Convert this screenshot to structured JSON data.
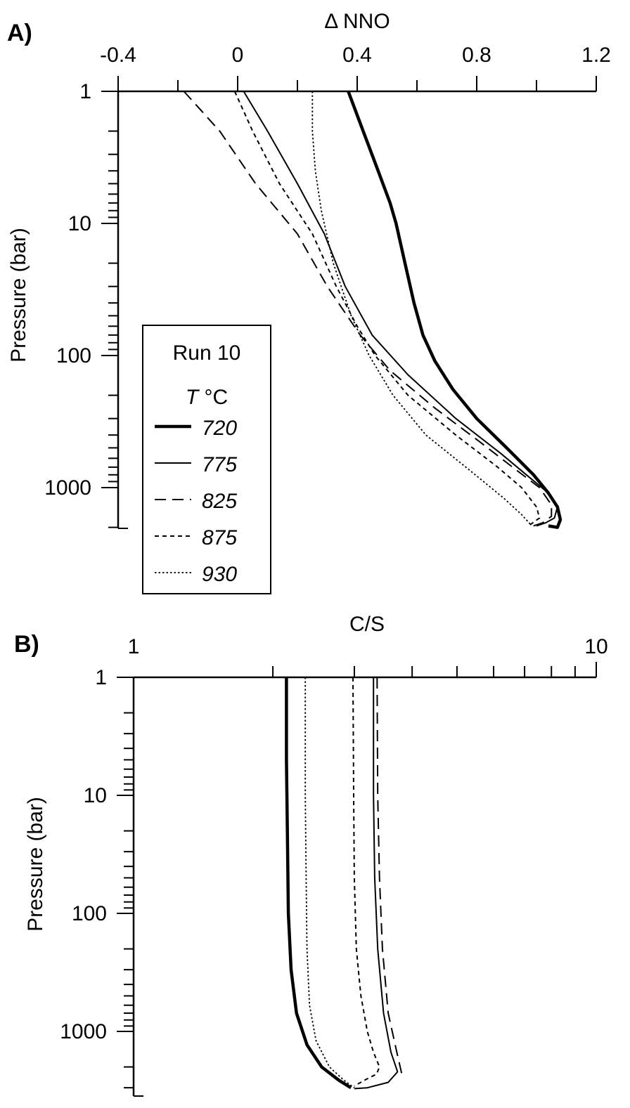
{
  "chart_data": [
    {
      "panel_label": "A)",
      "type": "line",
      "xlabel": "Δ NNO",
      "ylabel": "Pressure (bar)",
      "xlim": [
        -0.4,
        1.2
      ],
      "ylim": [
        1,
        3500
      ],
      "y_scale": "log",
      "y_inverted": true,
      "x_axis_position": "top",
      "x_tick_labels": [
        "-0.4",
        "0",
        "0.4",
        "0.8",
        "1.2"
      ],
      "y_tick_labels": [
        "1",
        "10",
        "100",
        "1000"
      ],
      "legend": {
        "title": "Run 10",
        "subtitle_italic": "T",
        "subtitle_unit": " °C",
        "entries": [
          "720",
          "775",
          "825",
          "875",
          "930"
        ],
        "position": "lower-left"
      },
      "series": [
        {
          "name": "720",
          "style": "thick-solid",
          "points": [
            [
              0.37,
              1
            ],
            [
              0.42,
              2
            ],
            [
              0.47,
              4
            ],
            [
              0.51,
              7
            ],
            [
              0.53,
              10
            ],
            [
              0.56,
              20
            ],
            [
              0.59,
              40
            ],
            [
              0.62,
              70
            ],
            [
              0.66,
              110
            ],
            [
              0.72,
              180
            ],
            [
              0.8,
              300
            ],
            [
              0.9,
              500
            ],
            [
              0.99,
              800
            ],
            [
              1.04,
              1100
            ],
            [
              1.07,
              1400
            ],
            [
              1.08,
              1750
            ],
            [
              1.07,
              2000
            ],
            [
              1.04,
              1950
            ]
          ]
        },
        {
          "name": "775",
          "style": "solid",
          "points": [
            [
              0.02,
              1
            ],
            [
              0.1,
              2
            ],
            [
              0.2,
              5
            ],
            [
              0.29,
              12
            ],
            [
              0.36,
              30
            ],
            [
              0.45,
              70
            ],
            [
              0.57,
              140
            ],
            [
              0.73,
              300
            ],
            [
              0.88,
              550
            ],
            [
              0.98,
              850
            ],
            [
              1.04,
              1100
            ],
            [
              1.07,
              1400
            ],
            [
              1.06,
              1700
            ],
            [
              1.03,
              1850
            ],
            [
              1.0,
              1950
            ]
          ]
        },
        {
          "name": "825",
          "style": "long-dash",
          "points": [
            [
              -0.18,
              1
            ],
            [
              -0.06,
              2
            ],
            [
              0.06,
              5
            ],
            [
              0.2,
              12
            ],
            [
              0.3,
              30
            ],
            [
              0.41,
              70
            ],
            [
              0.51,
              130
            ],
            [
              0.66,
              250
            ],
            [
              0.81,
              450
            ],
            [
              0.92,
              700
            ],
            [
              1.01,
              1000
            ],
            [
              1.05,
              1350
            ],
            [
              1.05,
              1650
            ],
            [
              1.02,
              1850
            ],
            [
              0.99,
              1950
            ]
          ]
        },
        {
          "name": "875",
          "style": "short-dash",
          "points": [
            [
              -0.01,
              1
            ],
            [
              0.05,
              2
            ],
            [
              0.14,
              5
            ],
            [
              0.25,
              12
            ],
            [
              0.33,
              30
            ],
            [
              0.4,
              60
            ],
            [
              0.46,
              100
            ],
            [
              0.57,
              200
            ],
            [
              0.73,
              400
            ],
            [
              0.87,
              700
            ],
            [
              0.95,
              1000
            ],
            [
              1.0,
              1400
            ],
            [
              1.01,
              1700
            ],
            [
              0.98,
              1900
            ],
            [
              0.99,
              1950
            ]
          ]
        },
        {
          "name": "930",
          "style": "dotted",
          "points": [
            [
              0.25,
              1
            ],
            [
              0.25,
              2
            ],
            [
              0.26,
              4
            ],
            [
              0.28,
              8
            ],
            [
              0.32,
              20
            ],
            [
              0.38,
              50
            ],
            [
              0.44,
              100
            ],
            [
              0.52,
              200
            ],
            [
              0.63,
              400
            ],
            [
              0.78,
              750
            ],
            [
              0.89,
              1200
            ],
            [
              0.95,
              1600
            ],
            [
              0.98,
              1900
            ]
          ]
        }
      ]
    },
    {
      "panel_label": "B)",
      "type": "line",
      "xlabel": "C/S",
      "ylabel": "Pressure (bar)",
      "x_scale": "log",
      "xlim": [
        1,
        10
      ],
      "ylim": [
        1,
        3500
      ],
      "y_scale": "log",
      "y_inverted": true,
      "x_axis_position": "top",
      "x_tick_labels": [
        "1",
        "10"
      ],
      "y_tick_labels": [
        "1",
        "10",
        "100",
        "1000"
      ],
      "series": [
        {
          "name": "720",
          "style": "thick-solid",
          "points": [
            [
              2.14,
              1
            ],
            [
              2.14,
              5
            ],
            [
              2.15,
              20
            ],
            [
              2.16,
              100
            ],
            [
              2.19,
              300
            ],
            [
              2.25,
              700
            ],
            [
              2.37,
              1300
            ],
            [
              2.55,
              2000
            ],
            [
              2.78,
              2600
            ],
            [
              2.95,
              3000
            ]
          ]
        },
        {
          "name": "775",
          "style": "solid",
          "points": [
            [
              3.3,
              1
            ],
            [
              3.3,
              10
            ],
            [
              3.32,
              50
            ],
            [
              3.37,
              200
            ],
            [
              3.47,
              700
            ],
            [
              3.6,
              1500
            ],
            [
              3.72,
              2200
            ],
            [
              3.55,
              2700
            ],
            [
              3.2,
              3000
            ],
            [
              3.0,
              3050
            ]
          ]
        },
        {
          "name": "825",
          "style": "long-dash",
          "points": [
            [
              3.36,
              1
            ],
            [
              3.37,
              10
            ],
            [
              3.4,
              50
            ],
            [
              3.45,
              200
            ],
            [
              3.55,
              700
            ],
            [
              3.72,
              1600
            ],
            [
              3.8,
              2300
            ]
          ]
        },
        {
          "name": "875",
          "style": "short-dash",
          "points": [
            [
              2.98,
              1
            ],
            [
              2.99,
              10
            ],
            [
              3.0,
              50
            ],
            [
              3.03,
              200
            ],
            [
              3.1,
              500
            ],
            [
              3.2,
              1000
            ],
            [
              3.3,
              1500
            ],
            [
              3.4,
              2000
            ],
            [
              3.35,
              2300
            ],
            [
              3.15,
              2600
            ],
            [
              3.0,
              2900
            ]
          ]
        },
        {
          "name": "930",
          "style": "dotted",
          "points": [
            [
              2.35,
              1
            ],
            [
              2.35,
              10
            ],
            [
              2.36,
              50
            ],
            [
              2.37,
              200
            ],
            [
              2.4,
              600
            ],
            [
              2.48,
              1200
            ],
            [
              2.65,
              2000
            ],
            [
              2.85,
              2600
            ],
            [
              3.0,
              3000
            ]
          ]
        }
      ]
    }
  ]
}
